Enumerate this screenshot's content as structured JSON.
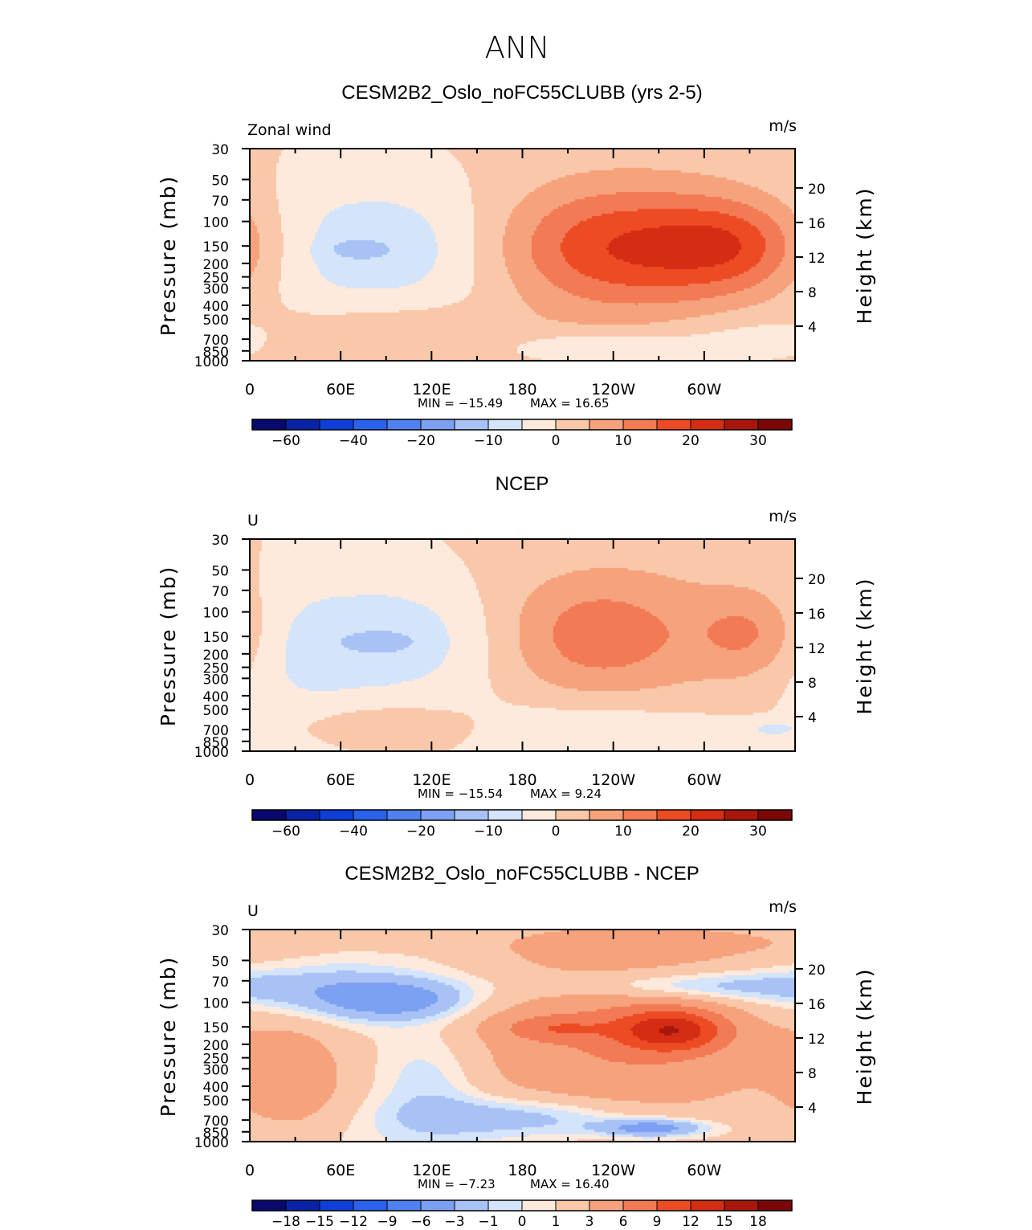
{
  "figure": {
    "title": "ANN",
    "colorbar_colors": [
      "#08086e",
      "#0a23a6",
      "#0f3fd8",
      "#2a62ee",
      "#4f82f0",
      "#7da1f2",
      "#a9c2f6",
      "#d3e4fb",
      "#fdeadc",
      "#f9c7aa",
      "#f6a27c",
      "#f27a54",
      "#ec4b24",
      "#d42d14",
      "#a9170c",
      "#7d0707"
    ]
  },
  "chart_data": [
    {
      "type": "heatmap",
      "title": "CESM2B2_Oslo_noFC55CLUBB (yrs 2-5)",
      "left_label": "Zonal wind",
      "units": "m/s",
      "ylabel_left": "Pressure (mb)",
      "ylabel_right": "Height (km)",
      "x_ticks": [
        "0",
        "60E",
        "120E",
        "180",
        "120W",
        "60W"
      ],
      "y_ticks_left": [
        "30",
        "50",
        "70",
        "100",
        "150",
        "200",
        "250",
        "300",
        "400",
        "500",
        "700",
        "850",
        "1000"
      ],
      "y_ticks_right": [
        "20",
        "16",
        "12",
        "8",
        "4"
      ],
      "min_text": "MIN = −15.49",
      "max_text": "MAX = 16.65",
      "min": -15.49,
      "max": 16.65,
      "colorbar_labels": [
        "−60",
        "−40",
        "−20",
        "−10",
        "0",
        "10",
        "20",
        "30"
      ],
      "colorbar_levels": [
        -70,
        -60,
        -50,
        -40,
        -30,
        -20,
        -15,
        -10,
        -5,
        0,
        5,
        10,
        15,
        20,
        25,
        30,
        35
      ],
      "features": [
        {
          "lon": 90,
          "lev": 0.46,
          "sx": 60,
          "sy": 0.22,
          "amp": -9
        },
        {
          "lon": 70,
          "lev": 0.47,
          "sx": 14,
          "sy": 0.03,
          "amp": -6
        },
        {
          "lon": 175,
          "lev": 0.55,
          "sx": 70,
          "sy": 0.3,
          "amp": -3
        },
        {
          "lon": 230,
          "lev": 0.93,
          "sx": 45,
          "sy": 0.05,
          "amp": -7
        },
        {
          "lon": 330,
          "lev": 0.88,
          "sx": 40,
          "sy": 0.08,
          "amp": -4
        },
        {
          "lon": 240,
          "lev": 0.46,
          "sx": 60,
          "sy": 0.2,
          "amp": 17
        },
        {
          "lon": 320,
          "lev": 0.45,
          "sx": 35,
          "sy": 0.15,
          "amp": 12
        },
        {
          "lon": 230,
          "lev": 0.55,
          "sx": 90,
          "sy": 0.4,
          "amp": 5
        },
        {
          "lon": 95,
          "lev": 0.88,
          "sx": 55,
          "sy": 0.1,
          "amp": 6
        }
      ]
    },
    {
      "type": "heatmap",
      "title": "NCEP",
      "left_label": "U",
      "units": "m/s",
      "ylabel_left": "Pressure (mb)",
      "ylabel_right": "Height (km)",
      "x_ticks": [
        "0",
        "60E",
        "120E",
        "180",
        "120W",
        "60W"
      ],
      "y_ticks_left": [
        "30",
        "50",
        "70",
        "100",
        "150",
        "200",
        "250",
        "300",
        "400",
        "500",
        "700",
        "850",
        "1000"
      ],
      "y_ticks_right": [
        "20",
        "16",
        "12",
        "8",
        "4"
      ],
      "min_text": "MIN = −15.54",
      "max_text": "MAX = 9.24",
      "min": -15.54,
      "max": 9.24,
      "colorbar_labels": [
        "−60",
        "−40",
        "−20",
        "−10",
        "0",
        "10",
        "20",
        "30"
      ],
      "colorbar_levels": [
        -70,
        -60,
        -50,
        -40,
        -30,
        -20,
        -15,
        -10,
        -5,
        0,
        5,
        10,
        15,
        20,
        25,
        30,
        35
      ],
      "features": [
        {
          "lon": 95,
          "lev": 0.47,
          "sx": 55,
          "sy": 0.2,
          "amp": -9
        },
        {
          "lon": 85,
          "lev": 0.48,
          "sx": 15,
          "sy": 0.03,
          "amp": -6
        },
        {
          "lon": 30,
          "lev": 0.6,
          "sx": 30,
          "sy": 0.35,
          "amp": -4
        },
        {
          "lon": 220,
          "lev": 0.88,
          "sx": 70,
          "sy": 0.1,
          "amp": -5
        },
        {
          "lon": 345,
          "lev": 0.89,
          "sx": 15,
          "sy": 0.03,
          "amp": -6
        },
        {
          "lon": 225,
          "lev": 0.45,
          "sx": 45,
          "sy": 0.2,
          "amp": 10
        },
        {
          "lon": 330,
          "lev": 0.44,
          "sx": 25,
          "sy": 0.14,
          "amp": 8
        },
        {
          "lon": 270,
          "lev": 0.42,
          "sx": 90,
          "sy": 0.3,
          "amp": 4
        },
        {
          "lon": 90,
          "lev": 0.87,
          "sx": 55,
          "sy": 0.08,
          "amp": 5
        }
      ]
    },
    {
      "type": "heatmap",
      "title": "CESM2B2_Oslo_noFC55CLUBB - NCEP",
      "left_label": "U",
      "units": "m/s",
      "ylabel_left": "Pressure (mb)",
      "ylabel_right": "Height (km)",
      "x_ticks": [
        "0",
        "60E",
        "120E",
        "180",
        "120W",
        "60W"
      ],
      "y_ticks_left": [
        "30",
        "50",
        "70",
        "100",
        "150",
        "200",
        "250",
        "300",
        "400",
        "500",
        "700",
        "850",
        "1000"
      ],
      "y_ticks_right": [
        "20",
        "16",
        "12",
        "8",
        "4"
      ],
      "min_text": "MIN = −7.23",
      "max_text": "MAX = 16.40",
      "min": -7.23,
      "max": 16.4,
      "colorbar_labels": [
        "−18",
        "−15",
        "−12",
        "−9",
        "−6",
        "−3",
        "−1",
        "0",
        "1",
        "3",
        "6",
        "9",
        "12",
        "15",
        "18"
      ],
      "colorbar_levels": [
        -21,
        -18,
        -15,
        -12,
        -9,
        -6,
        -3,
        -1,
        0,
        1,
        3,
        6,
        9,
        12,
        15,
        18,
        21
      ],
      "features": [
        {
          "lon": 240,
          "lev": 0.5,
          "sx": 80,
          "sy": 0.35,
          "amp": 6
        },
        {
          "lon": 278,
          "lev": 0.47,
          "sx": 25,
          "sy": 0.07,
          "amp": 10
        },
        {
          "lon": 200,
          "lev": 0.46,
          "sx": 25,
          "sy": 0.04,
          "amp": 4
        },
        {
          "lon": 30,
          "lev": 0.7,
          "sx": 30,
          "sy": 0.2,
          "amp": 4
        },
        {
          "lon": 60,
          "lev": 0.3,
          "sx": 70,
          "sy": 0.08,
          "amp": -3
        },
        {
          "lon": 95,
          "lev": 0.33,
          "sx": 30,
          "sy": 0.06,
          "amp": -4
        },
        {
          "lon": 280,
          "lev": 0.26,
          "sx": 65,
          "sy": 0.05,
          "amp": -4
        },
        {
          "lon": 185,
          "lev": 0.88,
          "sx": 55,
          "sy": 0.07,
          "amp": -4
        },
        {
          "lon": 265,
          "lev": 0.93,
          "sx": 25,
          "sy": 0.03,
          "amp": -6
        },
        {
          "lon": 120,
          "lev": 0.7,
          "sx": 25,
          "sy": 0.18,
          "amp": -2
        },
        {
          "lon": 300,
          "lev": 0.05,
          "sx": 120,
          "sy": 0.06,
          "amp": 2
        }
      ]
    }
  ]
}
